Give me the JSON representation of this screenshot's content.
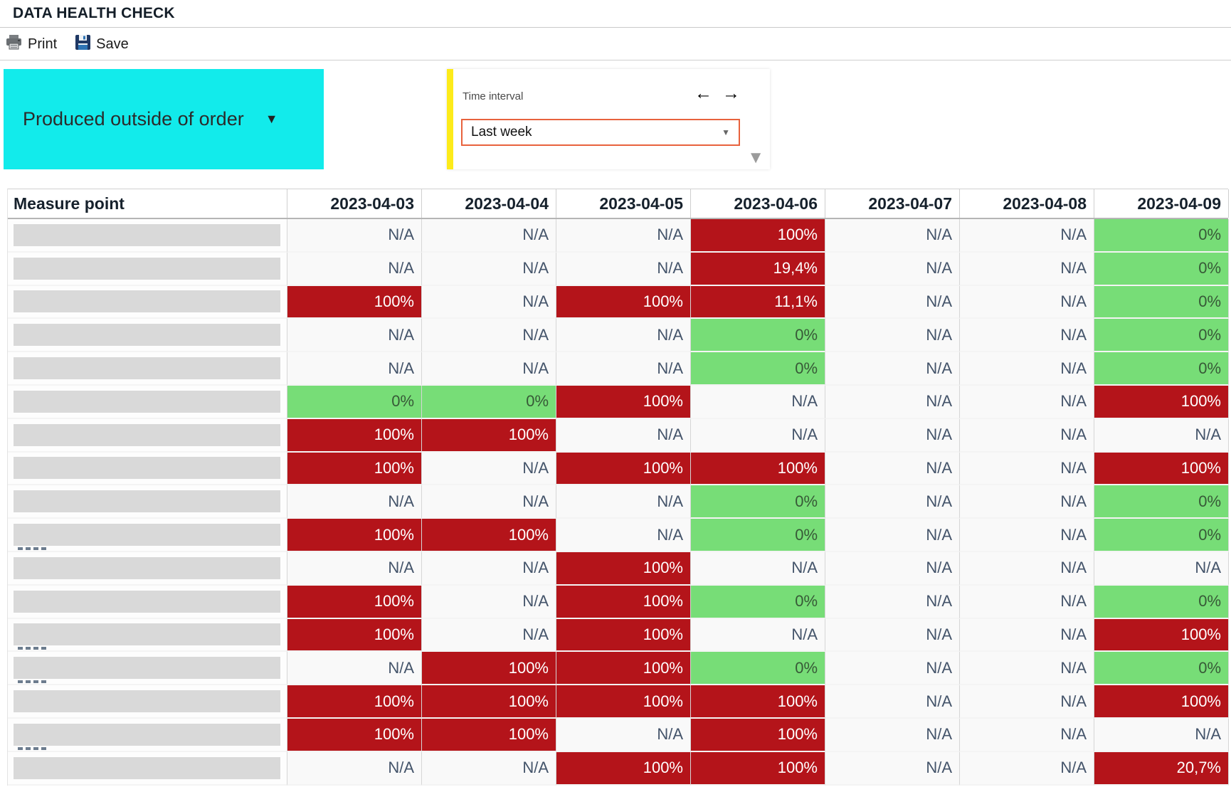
{
  "window": {
    "title": "DATA HEALTH CHECK"
  },
  "toolbar": {
    "print_label": "Print",
    "save_label": "Save"
  },
  "filter_chip": {
    "label": "Produced outside of order",
    "caret_glyph": "▼"
  },
  "time_panel": {
    "label": "Time interval",
    "selected_value": "Last week",
    "prev_glyph": "←",
    "next_glyph": "→",
    "select_caret_glyph": "▼",
    "expand_glyph": "▼"
  },
  "colors": {
    "cell_red": "#b4141a",
    "cell_green": "#77dd77",
    "chip_cyan": "#12ebeb",
    "panel_yellow": "#fdeb1a",
    "select_border_orange": "#e8623d"
  },
  "table": {
    "measure_header": "Measure point",
    "date_headers": [
      "2023-04-03",
      "2023-04-04",
      "2023-04-05",
      "2023-04-06",
      "2023-04-07",
      "2023-04-08",
      "2023-04-09"
    ],
    "rows": [
      {
        "peek": false,
        "cells": [
          [
            "na",
            "N/A"
          ],
          [
            "na",
            "N/A"
          ],
          [
            "na",
            "N/A"
          ],
          [
            "red",
            "100%"
          ],
          [
            "na",
            "N/A"
          ],
          [
            "na",
            "N/A"
          ],
          [
            "green",
            "0%"
          ]
        ]
      },
      {
        "peek": false,
        "cells": [
          [
            "na",
            "N/A"
          ],
          [
            "na",
            "N/A"
          ],
          [
            "na",
            "N/A"
          ],
          [
            "red",
            "19,4%"
          ],
          [
            "na",
            "N/A"
          ],
          [
            "na",
            "N/A"
          ],
          [
            "green",
            "0%"
          ]
        ]
      },
      {
        "peek": false,
        "cells": [
          [
            "red",
            "100%"
          ],
          [
            "na",
            "N/A"
          ],
          [
            "red",
            "100%"
          ],
          [
            "red",
            "11,1%"
          ],
          [
            "na",
            "N/A"
          ],
          [
            "na",
            "N/A"
          ],
          [
            "green",
            "0%"
          ]
        ]
      },
      {
        "peek": false,
        "cells": [
          [
            "na",
            "N/A"
          ],
          [
            "na",
            "N/A"
          ],
          [
            "na",
            "N/A"
          ],
          [
            "green",
            "0%"
          ],
          [
            "na",
            "N/A"
          ],
          [
            "na",
            "N/A"
          ],
          [
            "green",
            "0%"
          ]
        ]
      },
      {
        "peek": false,
        "cells": [
          [
            "na",
            "N/A"
          ],
          [
            "na",
            "N/A"
          ],
          [
            "na",
            "N/A"
          ],
          [
            "green",
            "0%"
          ],
          [
            "na",
            "N/A"
          ],
          [
            "na",
            "N/A"
          ],
          [
            "green",
            "0%"
          ]
        ]
      },
      {
        "peek": false,
        "cells": [
          [
            "green",
            "0%"
          ],
          [
            "green",
            "0%"
          ],
          [
            "red",
            "100%"
          ],
          [
            "na",
            "N/A"
          ],
          [
            "na",
            "N/A"
          ],
          [
            "na",
            "N/A"
          ],
          [
            "red",
            "100%"
          ]
        ]
      },
      {
        "peek": false,
        "cells": [
          [
            "red",
            "100%"
          ],
          [
            "red",
            "100%"
          ],
          [
            "na",
            "N/A"
          ],
          [
            "na",
            "N/A"
          ],
          [
            "na",
            "N/A"
          ],
          [
            "na",
            "N/A"
          ],
          [
            "na",
            "N/A"
          ]
        ]
      },
      {
        "peek": false,
        "cells": [
          [
            "red",
            "100%"
          ],
          [
            "na",
            "N/A"
          ],
          [
            "red",
            "100%"
          ],
          [
            "red",
            "100%"
          ],
          [
            "na",
            "N/A"
          ],
          [
            "na",
            "N/A"
          ],
          [
            "red",
            "100%"
          ]
        ]
      },
      {
        "peek": false,
        "cells": [
          [
            "na",
            "N/A"
          ],
          [
            "na",
            "N/A"
          ],
          [
            "na",
            "N/A"
          ],
          [
            "green",
            "0%"
          ],
          [
            "na",
            "N/A"
          ],
          [
            "na",
            "N/A"
          ],
          [
            "green",
            "0%"
          ]
        ]
      },
      {
        "peek": true,
        "cells": [
          [
            "red",
            "100%"
          ],
          [
            "red",
            "100%"
          ],
          [
            "na",
            "N/A"
          ],
          [
            "green",
            "0%"
          ],
          [
            "na",
            "N/A"
          ],
          [
            "na",
            "N/A"
          ],
          [
            "green",
            "0%"
          ]
        ]
      },
      {
        "peek": false,
        "cells": [
          [
            "na",
            "N/A"
          ],
          [
            "na",
            "N/A"
          ],
          [
            "red",
            "100%"
          ],
          [
            "na",
            "N/A"
          ],
          [
            "na",
            "N/A"
          ],
          [
            "na",
            "N/A"
          ],
          [
            "na",
            "N/A"
          ]
        ]
      },
      {
        "peek": false,
        "cells": [
          [
            "red",
            "100%"
          ],
          [
            "na",
            "N/A"
          ],
          [
            "red",
            "100%"
          ],
          [
            "green",
            "0%"
          ],
          [
            "na",
            "N/A"
          ],
          [
            "na",
            "N/A"
          ],
          [
            "green",
            "0%"
          ]
        ]
      },
      {
        "peek": true,
        "cells": [
          [
            "red",
            "100%"
          ],
          [
            "na",
            "N/A"
          ],
          [
            "red",
            "100%"
          ],
          [
            "na",
            "N/A"
          ],
          [
            "na",
            "N/A"
          ],
          [
            "na",
            "N/A"
          ],
          [
            "red",
            "100%"
          ]
        ]
      },
      {
        "peek": true,
        "cells": [
          [
            "na",
            "N/A"
          ],
          [
            "red",
            "100%"
          ],
          [
            "red",
            "100%"
          ],
          [
            "green",
            "0%"
          ],
          [
            "na",
            "N/A"
          ],
          [
            "na",
            "N/A"
          ],
          [
            "green",
            "0%"
          ]
        ]
      },
      {
        "peek": false,
        "cells": [
          [
            "red",
            "100%"
          ],
          [
            "red",
            "100%"
          ],
          [
            "red",
            "100%"
          ],
          [
            "red",
            "100%"
          ],
          [
            "na",
            "N/A"
          ],
          [
            "na",
            "N/A"
          ],
          [
            "red",
            "100%"
          ]
        ]
      },
      {
        "peek": true,
        "cells": [
          [
            "red",
            "100%"
          ],
          [
            "red",
            "100%"
          ],
          [
            "na",
            "N/A"
          ],
          [
            "red",
            "100%"
          ],
          [
            "na",
            "N/A"
          ],
          [
            "na",
            "N/A"
          ],
          [
            "na",
            "N/A"
          ]
        ]
      },
      {
        "peek": false,
        "cells": [
          [
            "na",
            "N/A"
          ],
          [
            "na",
            "N/A"
          ],
          [
            "red",
            "100%"
          ],
          [
            "red",
            "100%"
          ],
          [
            "na",
            "N/A"
          ],
          [
            "na",
            "N/A"
          ],
          [
            "red",
            "20,7%"
          ]
        ]
      }
    ]
  }
}
